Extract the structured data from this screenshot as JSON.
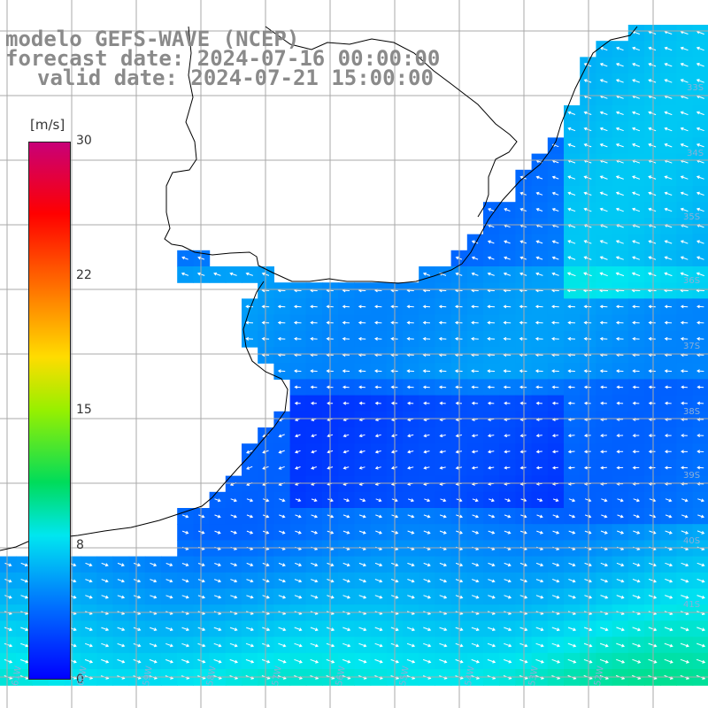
{
  "title": {
    "line1": "modelo GEFS-WAVE (NCEP)",
    "line2": "forecast date: 2024-07-16 00:00:00",
    "line3": "valid date: 2024-07-21 15:00:00"
  },
  "colorbar": {
    "units": "[m/s]",
    "ticks": [
      "30",
      "22",
      "15",
      "8",
      "0"
    ],
    "range": [
      0,
      30
    ]
  },
  "map": {
    "lat_labels": [
      "33S",
      "34S",
      "35S",
      "36S",
      "37S",
      "38S",
      "39S",
      "40S",
      "41S"
    ],
    "lon_labels": [
      "61W",
      "60W",
      "59W",
      "58W",
      "57W",
      "56W",
      "55W",
      "54W",
      "53W",
      "52W"
    ],
    "colors": {
      "land": "#ffffff",
      "grid": "#aaaaaa",
      "coast": "#000000",
      "arrows": "#ffffff",
      "labels": "#8a8a8a"
    },
    "wind_field": "GEFS-WAVE wind speed and direction"
  }
}
